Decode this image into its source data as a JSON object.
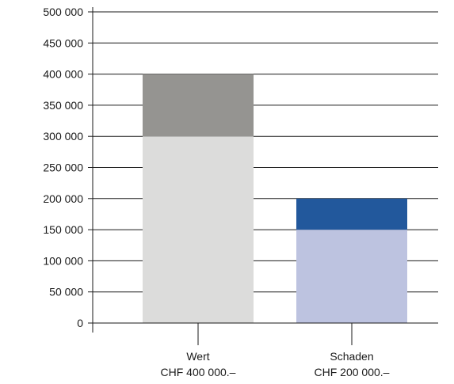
{
  "chart_data": {
    "type": "bar",
    "stacked": true,
    "title": "",
    "xlabel": "",
    "ylabel": "",
    "ylim": [
      0,
      500000
    ],
    "grid": true,
    "y_ticks": [
      0,
      50000,
      100000,
      150000,
      200000,
      250000,
      300000,
      350000,
      400000,
      450000,
      500000
    ],
    "y_tick_labels": [
      "0",
      "50 000",
      "100 000",
      "150 000",
      "200 000",
      "250 000",
      "300 000",
      "350 000",
      "400 000",
      "450 000",
      "500 000"
    ],
    "categories": [
      {
        "name": "Wert",
        "sublabel": "CHF 400 000.–"
      },
      {
        "name": "Schaden",
        "sublabel": "CHF 200 000.–"
      }
    ],
    "bars": [
      {
        "segments": [
          {
            "value": 300000,
            "color": "#dcdcdb"
          },
          {
            "value": 100000,
            "color": "#959491"
          }
        ]
      },
      {
        "segments": [
          {
            "value": 150000,
            "color": "#bdc3e0"
          },
          {
            "value": 50000,
            "color": "#22589c"
          }
        ]
      }
    ]
  }
}
